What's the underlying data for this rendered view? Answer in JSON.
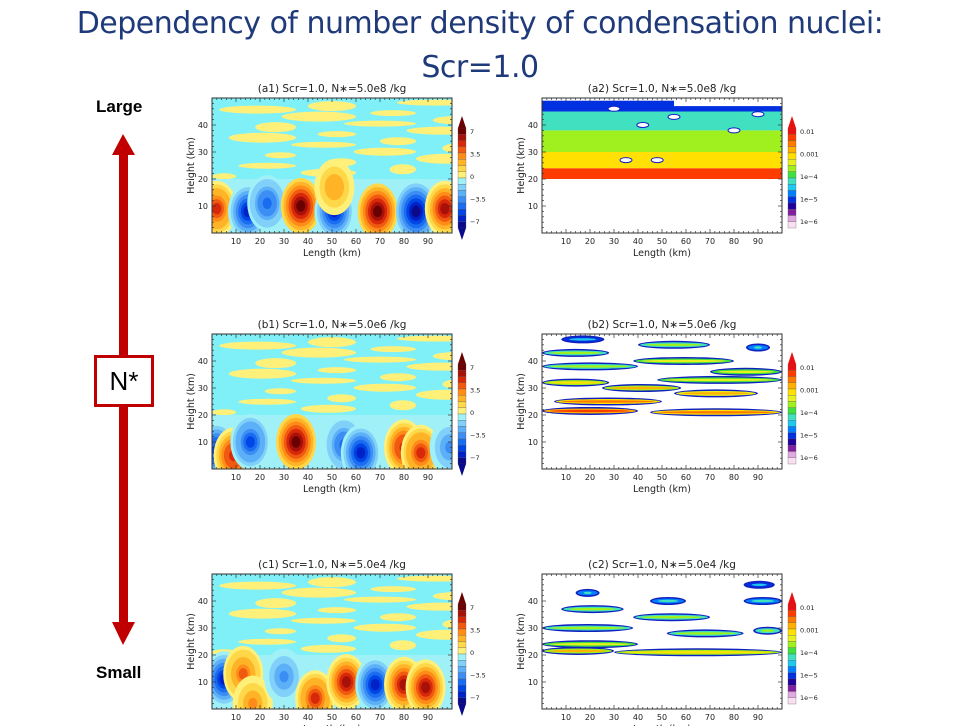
{
  "slide": {
    "title_line1": "Dependency of number density of condensation nuclei:",
    "title_line2": "Scr=1.0",
    "axis_top_label": "Large",
    "axis_bottom_label": "Small",
    "axis_box_label": "N*",
    "arrow_color": "#c00000"
  },
  "chart_data": [
    {
      "id": "a1",
      "type": "heatmap",
      "title": "(a1) Scr=1.0, N∗=5.0e8 /kg",
      "xlabel": "Length  (km)",
      "ylabel": "Height  (km)",
      "xlim": [
        0,
        100
      ],
      "ylim": [
        0,
        50
      ],
      "xticks": [
        10,
        20,
        30,
        40,
        50,
        60,
        70,
        80,
        90
      ],
      "yticks": [
        10,
        20,
        30,
        40
      ],
      "colorbar": {
        "kind": "diverging",
        "ticks": [
          "7",
          "3.5",
          "0",
          "−3.5",
          "−7"
        ],
        "range": [
          -7,
          7
        ]
      },
      "cells": [
        {
          "x": 2,
          "y": 9,
          "v": 4.5
        },
        {
          "x": 15,
          "y": 8,
          "v": -6
        },
        {
          "x": 23,
          "y": 11,
          "v": -4
        },
        {
          "x": 37,
          "y": 10,
          "v": 6.5
        },
        {
          "x": 51,
          "y": 8,
          "v": -6
        },
        {
          "x": 51,
          "y": 17,
          "v": 2.5
        },
        {
          "x": 69,
          "y": 8,
          "v": 6.8
        },
        {
          "x": 85,
          "y": 8,
          "v": -6.5
        },
        {
          "x": 97,
          "y": 9,
          "v": 6
        }
      ],
      "notes": "Alternating updraft/downdraft cells below 20 km; weak noise (yellow/cyan) above 20 km"
    },
    {
      "id": "a2",
      "type": "heatmap",
      "title": "(a2) Scr=1.0, N∗=5.0e8 /kg",
      "xlabel": "Length  (km)",
      "ylabel": "Height  (km)",
      "xlim": [
        0,
        100
      ],
      "ylim": [
        0,
        50
      ],
      "xticks": [
        10,
        20,
        30,
        40,
        50,
        60,
        70,
        80,
        90
      ],
      "yticks": [
        10,
        20,
        30,
        40
      ],
      "colorbar": {
        "kind": "log",
        "ticks": [
          "0.01",
          "0.001",
          "1e−4",
          "1e−5",
          "1e−6"
        ],
        "range": [
          1e-06,
          0.01
        ]
      },
      "layers": [
        {
          "y0": 20,
          "y1": 24,
          "v": 0.004
        },
        {
          "y0": 24,
          "y1": 30,
          "v": 0.0008
        },
        {
          "y0": 30,
          "y1": 38,
          "v": 0.0002
        },
        {
          "y0": 38,
          "y1": 45,
          "v": 6e-05
        },
        {
          "y0": 45,
          "y1": 49,
          "v": 1e-05
        }
      ],
      "notes": "Continuous field above 20 km, decreasing with height"
    },
    {
      "id": "b1",
      "type": "heatmap",
      "title": "(b1) Scr=1.0, N∗=5.0e6 /kg",
      "xlabel": "Length  (km)",
      "ylabel": "Height  (km)",
      "xlim": [
        0,
        100
      ],
      "ylim": [
        0,
        50
      ],
      "xticks": [
        10,
        20,
        30,
        40,
        50,
        60,
        70,
        80,
        90
      ],
      "yticks": [
        10,
        20,
        30,
        40
      ],
      "colorbar": {
        "kind": "diverging",
        "ticks": [
          "7",
          "3.5",
          "0",
          "−3.5",
          "−7"
        ],
        "range": [
          -7,
          7
        ]
      },
      "cells": [
        {
          "x": 2,
          "y": 7,
          "v": -5
        },
        {
          "x": 9,
          "y": 5,
          "v": 5
        },
        {
          "x": 16,
          "y": 10,
          "v": -4.5
        },
        {
          "x": 35,
          "y": 10,
          "v": 6.8
        },
        {
          "x": 55,
          "y": 9,
          "v": -4
        },
        {
          "x": 62,
          "y": 6,
          "v": -6
        },
        {
          "x": 80,
          "y": 8,
          "v": 5
        },
        {
          "x": 87,
          "y": 6,
          "v": 4.5
        },
        {
          "x": 99,
          "y": 8,
          "v": -3
        }
      ]
    },
    {
      "id": "b2",
      "type": "heatmap",
      "title": "(b2) Scr=1.0, N∗=5.0e6 /kg",
      "xlabel": "Length  (km)",
      "ylabel": "Height  (km)",
      "xlim": [
        0,
        100
      ],
      "ylim": [
        0,
        50
      ],
      "xticks": [
        10,
        20,
        30,
        40,
        50,
        60,
        70,
        80,
        90
      ],
      "yticks": [
        10,
        20,
        30,
        40
      ],
      "colorbar": {
        "kind": "log",
        "ticks": [
          "0.01",
          "0.001",
          "1e−4",
          "1e−5",
          "1e−6"
        ],
        "range": [
          1e-06,
          0.01
        ]
      },
      "streaks": [
        {
          "x0": 8,
          "x1": 26,
          "y": 48,
          "v": 5e-06
        },
        {
          "x0": 0,
          "x1": 28,
          "y": 43,
          "v": 3e-05
        },
        {
          "x0": 40,
          "x1": 70,
          "y": 46,
          "v": 3e-05
        },
        {
          "x0": 85,
          "x1": 95,
          "y": 45,
          "v": 8e-06
        },
        {
          "x0": 0,
          "x1": 40,
          "y": 38,
          "v": 2e-05
        },
        {
          "x0": 38,
          "x1": 80,
          "y": 40,
          "v": 4e-05
        },
        {
          "x0": 70,
          "x1": 100,
          "y": 36,
          "v": 4e-05
        },
        {
          "x0": 0,
          "x1": 28,
          "y": 32,
          "v": 8e-05
        },
        {
          "x0": 25,
          "x1": 58,
          "y": 30,
          "v": 0.0001
        },
        {
          "x0": 48,
          "x1": 100,
          "y": 33,
          "v": 5e-05
        },
        {
          "x0": 5,
          "x1": 50,
          "y": 25,
          "v": 0.0002
        },
        {
          "x0": 55,
          "x1": 90,
          "y": 28,
          "v": 0.00015
        },
        {
          "x0": 0,
          "x1": 40,
          "y": 21.5,
          "v": 0.0005
        },
        {
          "x0": 45,
          "x1": 100,
          "y": 21,
          "v": 0.0002
        }
      ]
    },
    {
      "id": "c1",
      "type": "heatmap",
      "title": "(c1) Scr=1.0, N∗=5.0e4 /kg",
      "xlabel": "Length  (km)",
      "ylabel": "Height  (km)",
      "xlim": [
        0,
        100
      ],
      "ylim": [
        0,
        50
      ],
      "xticks": [
        10,
        20,
        30,
        40,
        50,
        60,
        70,
        80,
        90
      ],
      "yticks": [
        10,
        20,
        30,
        40
      ],
      "colorbar": {
        "kind": "diverging",
        "ticks": [
          "7",
          "3.5",
          "0",
          "−3.5",
          "−7"
        ],
        "range": [
          -7,
          7
        ]
      },
      "cells": [
        {
          "x": 5,
          "y": 11,
          "v": -5.5
        },
        {
          "x": 13,
          "y": 13,
          "v": 3.5
        },
        {
          "x": 17,
          "y": 2,
          "v": 3
        },
        {
          "x": 30,
          "y": 12,
          "v": -3
        },
        {
          "x": 43,
          "y": 4,
          "v": 4.5
        },
        {
          "x": 56,
          "y": 10,
          "v": 6
        },
        {
          "x": 68,
          "y": 9,
          "v": -5.5
        },
        {
          "x": 80,
          "y": 9,
          "v": 5.5
        },
        {
          "x": 89,
          "y": 8,
          "v": 5.5
        }
      ]
    },
    {
      "id": "c2",
      "type": "heatmap",
      "title": "(c2) Scr=1.0, N∗=5.0e4 /kg",
      "xlabel": "Length  (km)",
      "ylabel": "Height  (km)",
      "xlim": [
        0,
        100
      ],
      "ylim": [
        0,
        50
      ],
      "xticks": [
        10,
        20,
        30,
        40,
        50,
        60,
        70,
        80,
        90
      ],
      "yticks": [
        10,
        20,
        30,
        40
      ],
      "colorbar": {
        "kind": "log",
        "ticks": [
          "0.01",
          "0.001",
          "1e−4",
          "1e−5",
          "1e−6"
        ],
        "range": [
          1e-06,
          0.01
        ]
      },
      "streaks": [
        {
          "x0": 14,
          "x1": 24,
          "y": 43,
          "v": 6e-06
        },
        {
          "x0": 45,
          "x1": 60,
          "y": 40,
          "v": 6e-06
        },
        {
          "x0": 84,
          "x1": 97,
          "y": 46,
          "v": 4e-06
        },
        {
          "x0": 84,
          "x1": 100,
          "y": 40,
          "v": 8e-06
        },
        {
          "x0": 8,
          "x1": 34,
          "y": 37,
          "v": 2e-05
        },
        {
          "x0": 38,
          "x1": 70,
          "y": 34,
          "v": 2e-05
        },
        {
          "x0": 0,
          "x1": 38,
          "y": 30,
          "v": 2e-05
        },
        {
          "x0": 52,
          "x1": 84,
          "y": 28,
          "v": 3e-05
        },
        {
          "x0": 0,
          "x1": 40,
          "y": 24,
          "v": 4e-05
        },
        {
          "x0": 0,
          "x1": 30,
          "y": 21.5,
          "v": 0.0001
        },
        {
          "x0": 30,
          "x1": 100,
          "y": 21,
          "v": 8e-05
        },
        {
          "x0": 88,
          "x1": 100,
          "y": 29,
          "v": 3e-05
        }
      ]
    }
  ]
}
